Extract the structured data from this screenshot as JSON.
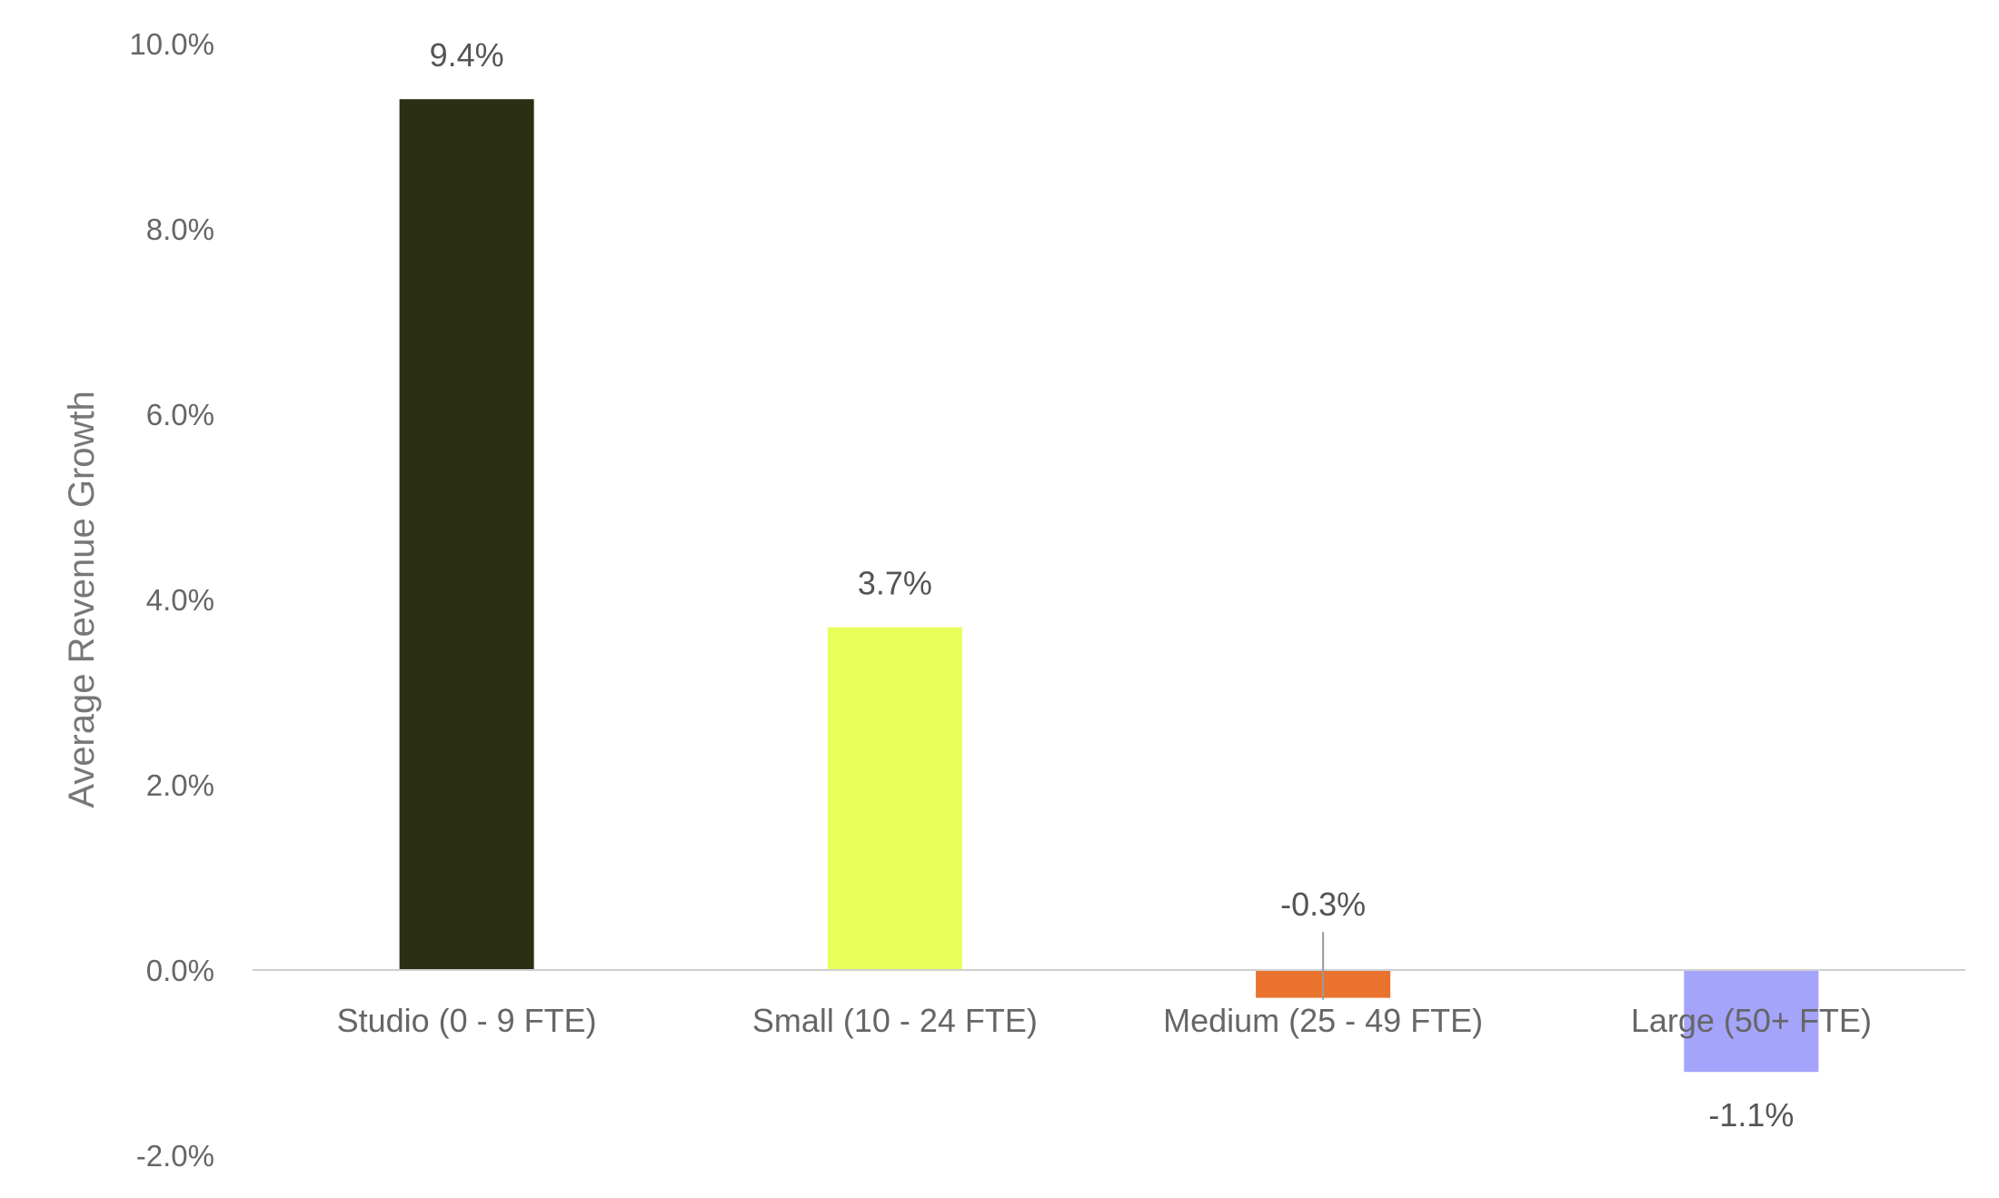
{
  "chart_data": {
    "type": "bar",
    "title": "",
    "xlabel": "",
    "ylabel": "Average Revenue Growth",
    "ylim": [
      -2.0,
      10.0
    ],
    "yticks": [
      -2.0,
      0.0,
      2.0,
      4.0,
      6.0,
      8.0,
      10.0
    ],
    "ytick_labels": [
      "-2.0%",
      "0.0%",
      "2.0%",
      "4.0%",
      "6.0%",
      "8.0%",
      "10.0%"
    ],
    "categories": [
      "Studio (0 - 9 FTE)",
      "Small (10 - 24 FTE)",
      "Medium (25 - 49 FTE)",
      "Large (50+ FTE)"
    ],
    "values": [
      9.4,
      3.7,
      -0.3,
      -1.1
    ],
    "data_labels": [
      "9.4%",
      "3.7%",
      "-0.3%",
      "-1.1%"
    ],
    "colors": [
      "#2b2f14",
      "#e8ff5c",
      "#e8722e",
      "#a4a4fb"
    ],
    "grid": false,
    "legend": "none"
  }
}
